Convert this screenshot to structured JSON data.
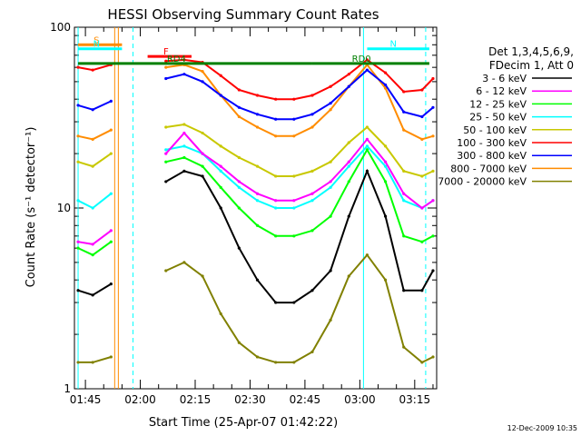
{
  "chart_data": {
    "type": "line",
    "title": "HESSI Observing Summary Count Rates",
    "xlabel": "Start Time (25-Apr-07 01:42:22)",
    "ylabel": "Count Rate (s⁻¹ detector⁻¹)",
    "yscale": "log",
    "ylim": [
      1,
      100
    ],
    "xlim": [
      "01:42",
      "03:21"
    ],
    "x_ticks": [
      "01:45",
      "02:00",
      "02:15",
      "02:30",
      "02:45",
      "03:00",
      "03:15"
    ],
    "y_ticks": [
      "1",
      "10",
      "100"
    ],
    "legend_title": [
      "Det 1,3,4,5,6,9,",
      "FDecim 1, Att 0"
    ],
    "legend_position": "right",
    "grid": false,
    "x": [
      "01:43",
      "01:47",
      "01:52",
      "01:57",
      "02:02",
      "02:07",
      "02:12",
      "02:17",
      "02:22",
      "02:27",
      "02:32",
      "02:37",
      "02:42",
      "02:47",
      "02:52",
      "02:57",
      "03:02",
      "03:07",
      "03:12",
      "03:17",
      "03:20"
    ],
    "series": [
      {
        "name": "3 - 6 keV",
        "color": "#000000",
        "values": [
          3.5,
          3.3,
          3.8,
          null,
          null,
          14,
          16,
          15,
          10,
          6,
          4,
          3,
          3,
          3.5,
          4.5,
          9,
          16,
          9,
          3.5,
          3.5,
          4.5
        ]
      },
      {
        "name": "6 - 12 keV",
        "color": "#ff00ff",
        "values": [
          6.5,
          6.3,
          7.5,
          null,
          null,
          20,
          26,
          20,
          17,
          14,
          12,
          11,
          11,
          12,
          14,
          18,
          24,
          18,
          12,
          10,
          11
        ]
      },
      {
        "name": "12 - 25 keV",
        "color": "#00ff00",
        "values": [
          6,
          5.5,
          6.5,
          null,
          null,
          18,
          19,
          17,
          13,
          10,
          8,
          7,
          7,
          7.5,
          9,
          14,
          21,
          14,
          7,
          6.5,
          7
        ]
      },
      {
        "name": "25 - 50 keV",
        "color": "#00ffff",
        "values": [
          11,
          10,
          12,
          null,
          null,
          21,
          22,
          20,
          16,
          13,
          11,
          10,
          10,
          11,
          13,
          17,
          22,
          17,
          11,
          10,
          11
        ]
      },
      {
        "name": "50 - 100 keV",
        "color": "#c8c800",
        "values": [
          18,
          17,
          20,
          null,
          null,
          28,
          29,
          26,
          22,
          19,
          17,
          15,
          15,
          16,
          18,
          23,
          28,
          22,
          16,
          15,
          16
        ]
      },
      {
        "name": "100 - 300 keV",
        "color": "#ff0000",
        "values": [
          60,
          58,
          62,
          null,
          null,
          65,
          66,
          64,
          54,
          45,
          42,
          40,
          40,
          42,
          47,
          55,
          66,
          56,
          44,
          45,
          52
        ]
      },
      {
        "name": "300 - 800 keV",
        "color": "#0000ff",
        "values": [
          37,
          35,
          39,
          null,
          null,
          52,
          55,
          50,
          42,
          36,
          33,
          31,
          31,
          33,
          38,
          47,
          58,
          48,
          34,
          32,
          36
        ]
      },
      {
        "name": "800 - 7000 keV",
        "color": "#ff8c00",
        "values": [
          25,
          24,
          27,
          null,
          null,
          60,
          62,
          57,
          42,
          32,
          28,
          25,
          25,
          28,
          35,
          47,
          62,
          46,
          27,
          24,
          25
        ]
      },
      {
        "name": "7000 - 20000 keV",
        "color": "#808000",
        "values": [
          1.4,
          1.4,
          1.5,
          null,
          null,
          4.5,
          5,
          4.2,
          2.6,
          1.8,
          1.5,
          1.4,
          1.4,
          1.6,
          2.4,
          4.2,
          5.5,
          4,
          1.7,
          1.4,
          1.5
        ]
      }
    ],
    "flags": [
      {
        "label": "S",
        "color": "#ff8c00",
        "start": "01:43",
        "end": "01:55",
        "level": 80
      },
      {
        "label": "N",
        "color": "#00ffff",
        "start": "01:43",
        "end": "01:55",
        "level": 76
      },
      {
        "label": "N",
        "color": "#00ffff",
        "start": "03:02",
        "end": "03:19",
        "level": 76
      },
      {
        "label": "F",
        "color": "#ff0000",
        "start": "02:02",
        "end": "02:14",
        "level": 69
      },
      {
        "label": "RD4",
        "color": "#008000",
        "start": "01:43",
        "end": "02:47",
        "level": 63
      },
      {
        "label": "RD0",
        "color": "#008000",
        "start": "02:47",
        "end": "03:19",
        "level": 63
      }
    ],
    "vertical_markers": [
      {
        "time": "01:53",
        "color": "#ff8c00",
        "style": "solid"
      },
      {
        "time": "01:54",
        "color": "#ff8c00",
        "style": "solid"
      },
      {
        "time": "01:58",
        "color": "#00ffff",
        "style": "dashed"
      },
      {
        "time": "03:01",
        "color": "#00ffff",
        "style": "solid"
      },
      {
        "time": "03:18",
        "color": "#00ffff",
        "style": "dashed"
      },
      {
        "time": "01:43",
        "color": "#00ffff",
        "style": "solid"
      }
    ],
    "footer_date": "12-Dec-2009 10:35"
  }
}
